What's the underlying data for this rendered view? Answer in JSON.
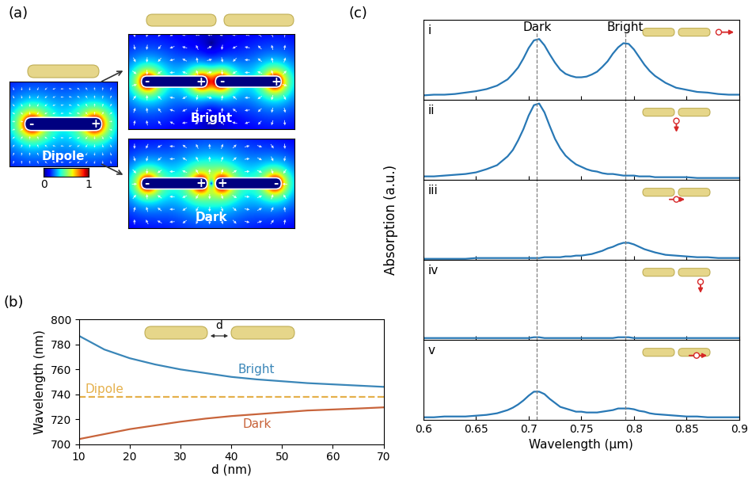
{
  "diagram": {
    "panel": "(a)",
    "maps": [
      {
        "label": "Dipole",
        "charges": [
          "-",
          "+"
        ]
      },
      {
        "label": "Bright",
        "charges": [
          "-",
          "+",
          "-",
          "+"
        ]
      },
      {
        "label": "Dark",
        "charges": [
          "-",
          "+",
          "+",
          "-"
        ]
      }
    ],
    "colorbar": {
      "range": [
        0,
        1
      ],
      "ticks": [
        0,
        1
      ]
    }
  },
  "chart_data": [
    {
      "type": "line",
      "panel": "(b)",
      "xlabel": "d (nm)",
      "ylabel": "Wavelength (nm)",
      "inset_label": "d",
      "xlim": [
        10,
        70
      ],
      "xticks": [
        10,
        20,
        30,
        40,
        50,
        60,
        70
      ],
      "ylim": [
        700,
        800
      ],
      "yticks": [
        700,
        720,
        740,
        760,
        780,
        800
      ],
      "x": [
        10,
        15,
        20,
        25,
        30,
        35,
        40,
        45,
        50,
        55,
        60,
        65,
        70
      ],
      "series": [
        {
          "name": "Bright",
          "color": "#3a86b8",
          "line_style": "solid",
          "values": [
            787,
            776,
            769,
            764,
            760,
            757,
            754,
            752,
            750.5,
            749,
            748,
            747,
            746
          ]
        },
        {
          "name": "Dark",
          "color": "#c8643b",
          "line_style": "solid",
          "values": [
            704,
            708,
            712,
            715,
            718,
            720.5,
            722.5,
            724,
            725.5,
            727,
            727.8,
            728.6,
            729.5
          ]
        },
        {
          "name": "Dipole",
          "color": "#e5b04b",
          "line_style": "dashed",
          "values": [
            738,
            738,
            738,
            738,
            738,
            738,
            738,
            738,
            738,
            738,
            738,
            738,
            738
          ]
        }
      ]
    },
    {
      "type": "line",
      "panel": "(c)",
      "label": "i",
      "color": "#2878b5",
      "tick_labels": false,
      "xlim": [
        0.6,
        0.9
      ],
      "xticks": [
        0.6,
        0.65,
        0.7,
        0.75,
        0.8,
        0.85,
        0.9
      ],
      "ylim": [
        0,
        1.15
      ],
      "vlines": [
        0.708,
        0.792
      ],
      "annotations": [
        {
          "x": 0.708,
          "text": "Dark"
        },
        {
          "x": 0.792,
          "text": "Bright"
        }
      ],
      "x": [
        0.6,
        0.61,
        0.62,
        0.63,
        0.64,
        0.65,
        0.66,
        0.67,
        0.68,
        0.685,
        0.69,
        0.695,
        0.7,
        0.705,
        0.71,
        0.715,
        0.72,
        0.725,
        0.73,
        0.735,
        0.74,
        0.745,
        0.75,
        0.755,
        0.76,
        0.765,
        0.77,
        0.775,
        0.78,
        0.785,
        0.79,
        0.795,
        0.8,
        0.805,
        0.81,
        0.815,
        0.82,
        0.83,
        0.84,
        0.85,
        0.86,
        0.87,
        0.88,
        0.89,
        0.9
      ],
      "values": [
        0.06,
        0.07,
        0.07,
        0.08,
        0.1,
        0.12,
        0.15,
        0.2,
        0.29,
        0.37,
        0.46,
        0.59,
        0.74,
        0.85,
        0.87,
        0.78,
        0.65,
        0.53,
        0.43,
        0.37,
        0.34,
        0.32,
        0.32,
        0.33,
        0.36,
        0.4,
        0.47,
        0.55,
        0.66,
        0.75,
        0.81,
        0.8,
        0.72,
        0.61,
        0.5,
        0.41,
        0.34,
        0.24,
        0.17,
        0.14,
        0.11,
        0.1,
        0.08,
        0.07,
        0.07
      ]
    },
    {
      "type": "line",
      "label": "ii",
      "color": "#2878b5",
      "tick_labels": false,
      "xlim": [
        0.6,
        0.9
      ],
      "xticks": [
        0.6,
        0.65,
        0.7,
        0.75,
        0.8,
        0.85,
        0.9
      ],
      "ylim": [
        0,
        1
      ],
      "vlines": [
        0.708,
        0.792
      ],
      "x": [
        0.6,
        0.61,
        0.62,
        0.63,
        0.64,
        0.65,
        0.66,
        0.67,
        0.68,
        0.685,
        0.69,
        0.695,
        0.7,
        0.705,
        0.71,
        0.715,
        0.72,
        0.725,
        0.73,
        0.735,
        0.74,
        0.745,
        0.75,
        0.755,
        0.76,
        0.765,
        0.77,
        0.775,
        0.78,
        0.785,
        0.79,
        0.795,
        0.8,
        0.805,
        0.81,
        0.815,
        0.82,
        0.83,
        0.84,
        0.85,
        0.86,
        0.87,
        0.88,
        0.89,
        0.9
      ],
      "values": [
        0.04,
        0.04,
        0.05,
        0.06,
        0.07,
        0.09,
        0.13,
        0.18,
        0.29,
        0.37,
        0.49,
        0.63,
        0.8,
        0.93,
        0.95,
        0.84,
        0.67,
        0.51,
        0.39,
        0.3,
        0.24,
        0.19,
        0.16,
        0.13,
        0.11,
        0.1,
        0.08,
        0.07,
        0.07,
        0.06,
        0.05,
        0.05,
        0.05,
        0.04,
        0.04,
        0.04,
        0.03,
        0.03,
        0.03,
        0.03,
        0.02,
        0.02,
        0.02,
        0.02,
        0.02
      ]
    },
    {
      "type": "line",
      "label": "iii",
      "color": "#2878b5",
      "tick_labels": false,
      "ylabel": "Absorption (a.u.)",
      "xlim": [
        0.6,
        0.9
      ],
      "xticks": [
        0.6,
        0.65,
        0.7,
        0.75,
        0.8,
        0.85,
        0.9
      ],
      "ylim": [
        0,
        1
      ],
      "vlines": [
        0.708,
        0.792
      ],
      "x": [
        0.6,
        0.61,
        0.62,
        0.63,
        0.64,
        0.65,
        0.66,
        0.67,
        0.68,
        0.685,
        0.69,
        0.695,
        0.7,
        0.705,
        0.71,
        0.715,
        0.72,
        0.725,
        0.73,
        0.735,
        0.74,
        0.745,
        0.75,
        0.755,
        0.76,
        0.765,
        0.77,
        0.775,
        0.78,
        0.785,
        0.79,
        0.795,
        0.8,
        0.805,
        0.81,
        0.815,
        0.82,
        0.83,
        0.84,
        0.85,
        0.86,
        0.87,
        0.88,
        0.89,
        0.9
      ],
      "values": [
        0.01,
        0.01,
        0.01,
        0.01,
        0.01,
        0.02,
        0.02,
        0.02,
        0.02,
        0.02,
        0.02,
        0.02,
        0.02,
        0.02,
        0.02,
        0.03,
        0.03,
        0.03,
        0.03,
        0.04,
        0.04,
        0.05,
        0.05,
        0.06,
        0.07,
        0.09,
        0.11,
        0.14,
        0.16,
        0.19,
        0.21,
        0.21,
        0.19,
        0.16,
        0.13,
        0.11,
        0.09,
        0.06,
        0.05,
        0.04,
        0.03,
        0.03,
        0.02,
        0.02,
        0.02
      ]
    },
    {
      "type": "line",
      "label": "iv",
      "color": "#2878b5",
      "tick_labels": false,
      "xlim": [
        0.6,
        0.9
      ],
      "xticks": [
        0.6,
        0.65,
        0.7,
        0.75,
        0.8,
        0.85,
        0.9
      ],
      "ylim": [
        0,
        1
      ],
      "vlines": [
        0.708,
        0.792
      ],
      "x": [
        0.6,
        0.61,
        0.62,
        0.63,
        0.64,
        0.65,
        0.66,
        0.67,
        0.68,
        0.685,
        0.69,
        0.695,
        0.7,
        0.705,
        0.71,
        0.715,
        0.72,
        0.725,
        0.73,
        0.735,
        0.74,
        0.745,
        0.75,
        0.755,
        0.76,
        0.765,
        0.77,
        0.775,
        0.78,
        0.785,
        0.79,
        0.795,
        0.8,
        0.805,
        0.81,
        0.815,
        0.82,
        0.83,
        0.84,
        0.85,
        0.86,
        0.87,
        0.88,
        0.89,
        0.9
      ],
      "values": [
        0.02,
        0.02,
        0.02,
        0.02,
        0.02,
        0.02,
        0.02,
        0.02,
        0.02,
        0.02,
        0.02,
        0.02,
        0.02,
        0.03,
        0.03,
        0.02,
        0.02,
        0.02,
        0.02,
        0.02,
        0.02,
        0.02,
        0.02,
        0.02,
        0.02,
        0.02,
        0.02,
        0.02,
        0.02,
        0.03,
        0.03,
        0.03,
        0.02,
        0.02,
        0.02,
        0.02,
        0.02,
        0.02,
        0.02,
        0.02,
        0.02,
        0.02,
        0.02,
        0.02,
        0.02
      ]
    },
    {
      "type": "line",
      "label": "v",
      "color": "#2878b5",
      "tick_labels": "x",
      "xlabel": "Wavelength (μm)",
      "xlim": [
        0.6,
        0.9
      ],
      "xticks": [
        0.6,
        0.65,
        0.7,
        0.75,
        0.8,
        0.85,
        0.9
      ],
      "ylim": [
        0,
        1
      ],
      "vlines": [
        0.708,
        0.792
      ],
      "x": [
        0.6,
        0.61,
        0.62,
        0.63,
        0.64,
        0.65,
        0.66,
        0.67,
        0.68,
        0.685,
        0.69,
        0.695,
        0.7,
        0.705,
        0.71,
        0.715,
        0.72,
        0.725,
        0.73,
        0.735,
        0.74,
        0.745,
        0.75,
        0.755,
        0.76,
        0.765,
        0.77,
        0.775,
        0.78,
        0.785,
        0.79,
        0.795,
        0.8,
        0.805,
        0.81,
        0.815,
        0.82,
        0.83,
        0.84,
        0.85,
        0.86,
        0.87,
        0.88,
        0.89,
        0.9
      ],
      "values": [
        0.03,
        0.03,
        0.04,
        0.04,
        0.04,
        0.05,
        0.06,
        0.08,
        0.12,
        0.15,
        0.19,
        0.24,
        0.3,
        0.35,
        0.35,
        0.32,
        0.26,
        0.21,
        0.16,
        0.14,
        0.12,
        0.1,
        0.1,
        0.09,
        0.09,
        0.09,
        0.1,
        0.11,
        0.12,
        0.14,
        0.14,
        0.14,
        0.13,
        0.11,
        0.1,
        0.08,
        0.07,
        0.06,
        0.05,
        0.04,
        0.04,
        0.03,
        0.03,
        0.03,
        0.03
      ]
    }
  ]
}
